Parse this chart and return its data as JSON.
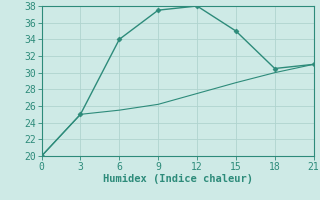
{
  "line1_x": [
    0,
    3,
    6,
    9,
    12,
    15,
    18,
    21
  ],
  "line1_y": [
    20,
    25,
    34,
    37.5,
    38,
    35,
    30.5,
    31
  ],
  "line2_x": [
    0,
    3,
    6,
    9,
    12,
    15,
    18,
    21
  ],
  "line2_y": [
    20,
    25,
    25.5,
    26.2,
    27.5,
    28.8,
    30.0,
    31
  ],
  "line_color": "#2d8b7a",
  "bg_color": "#ceeae6",
  "grid_color": "#b0d4cf",
  "spine_color": "#2d8b7a",
  "xlabel": "Humidex (Indice chaleur)",
  "xlim": [
    0,
    21
  ],
  "ylim": [
    20,
    38
  ],
  "xticks": [
    0,
    3,
    6,
    9,
    12,
    15,
    18,
    21
  ],
  "yticks": [
    20,
    22,
    24,
    26,
    28,
    30,
    32,
    34,
    36,
    38
  ],
  "xlabel_fontsize": 7.5,
  "tick_fontsize": 7,
  "marker1": "D",
  "marker2": "D",
  "markersize1": 2.5,
  "markersize2": 0,
  "linewidth1": 1.0,
  "linewidth2": 0.8
}
